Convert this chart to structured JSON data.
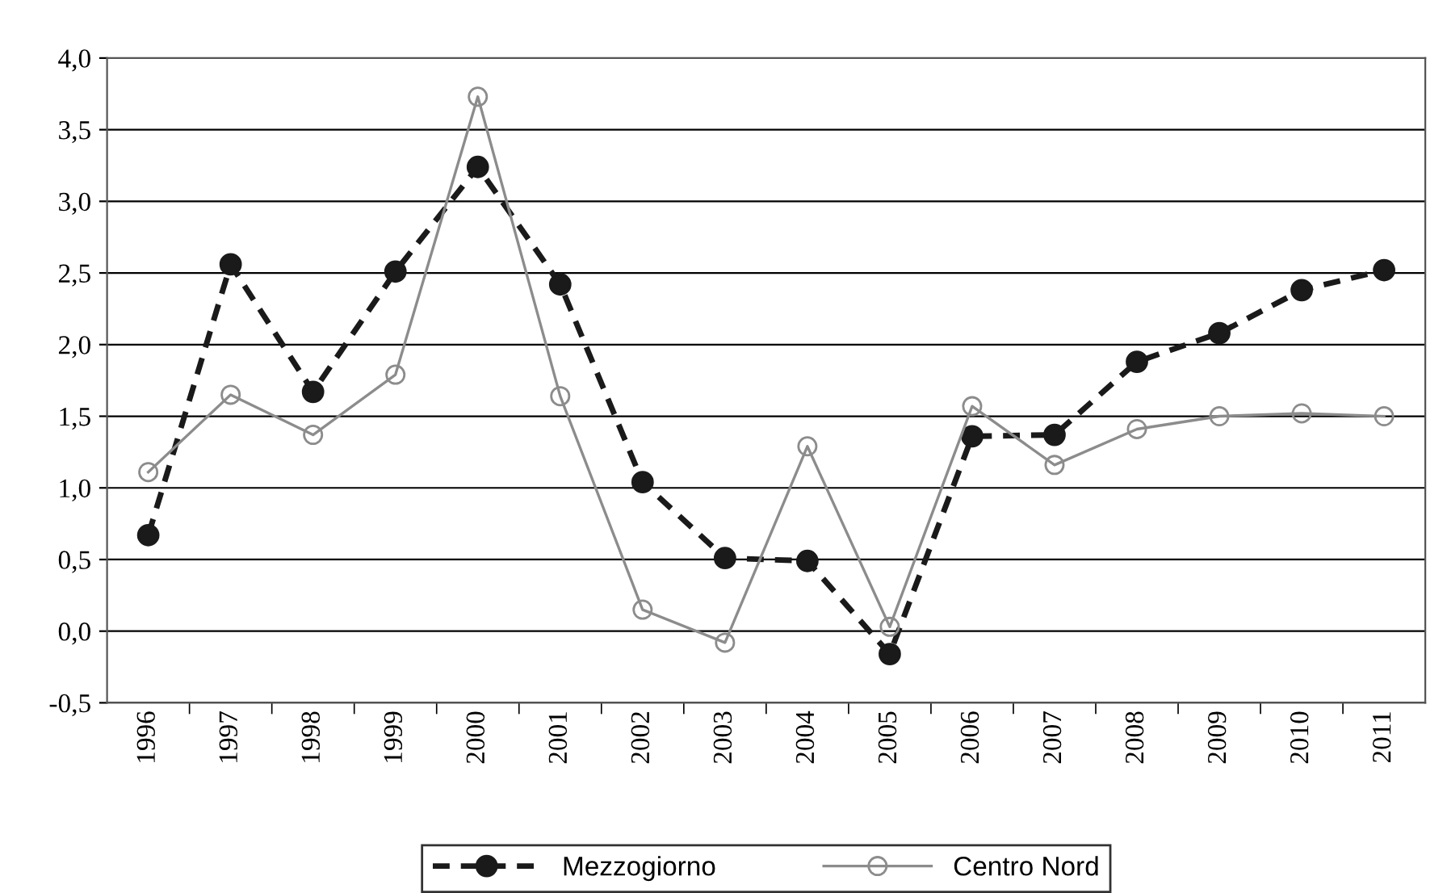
{
  "chart_data": {
    "type": "line",
    "categories": [
      "1996",
      "1997",
      "1998",
      "1999",
      "2000",
      "2001",
      "2002",
      "2003",
      "2004",
      "2005",
      "2006",
      "2007",
      "2008",
      "2009",
      "2010",
      "2011"
    ],
    "series": [
      {
        "name": "Mezzogiorno",
        "color": "#1a1a1a",
        "marker": "circle",
        "line_style": "dashed",
        "values": [
          0.67,
          2.56,
          1.67,
          2.51,
          3.24,
          2.42,
          1.04,
          0.51,
          0.49,
          -0.16,
          1.36,
          1.37,
          1.88,
          2.08,
          2.38,
          2.52
        ]
      },
      {
        "name": "Centro Nord",
        "color": "#8c8c8c",
        "marker": "circle",
        "line_style": "solid",
        "values": [
          1.11,
          1.65,
          1.37,
          1.79,
          3.73,
          1.64,
          0.15,
          -0.08,
          1.29,
          0.03,
          1.57,
          1.16,
          1.41,
          1.5,
          1.52,
          1.5
        ]
      }
    ],
    "ylim": [
      -0.5,
      4.0
    ],
    "yticks": [
      {
        "value": -0.5,
        "label": "-0,5"
      },
      {
        "value": 0,
        "label": "0,0"
      },
      {
        "value": 0.5,
        "label": "0,5"
      },
      {
        "value": 1.0,
        "label": "1,0"
      },
      {
        "value": 1.5,
        "label": "1,5"
      },
      {
        "value": 2.0,
        "label": "2,0"
      },
      {
        "value": 2.5,
        "label": "2,5"
      },
      {
        "value": 3.0,
        "label": "3,0"
      },
      {
        "value": 3.5,
        "label": "3,5"
      },
      {
        "value": 4.0,
        "label": "4,0"
      }
    ],
    "grid": "y",
    "legend": "bottom"
  }
}
